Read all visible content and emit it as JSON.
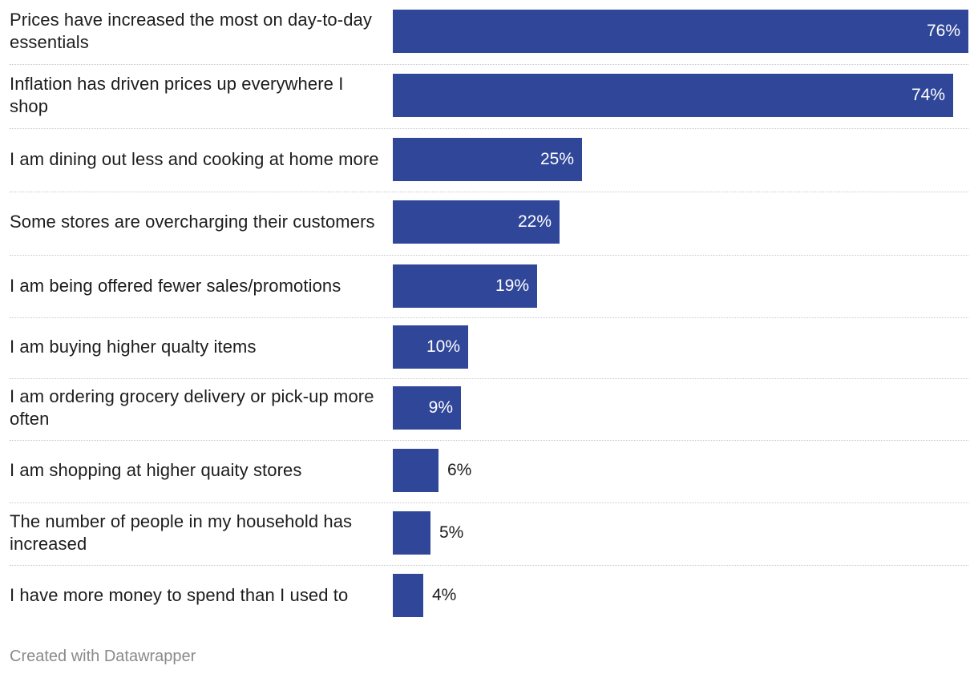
{
  "chart_data": {
    "type": "bar",
    "orientation": "horizontal",
    "categories": [
      "Prices have increased the most on day-to-day essentials",
      "Inflation has driven prices up everywhere I shop",
      "I am dining out less and cooking at home more",
      "Some stores are overcharging their customers",
      "I am being offered fewer sales/promotions",
      "I am buying higher qualty items",
      "I am ordering grocery delivery or pick-up more often",
      "I am shopping at higher quaity stores",
      "The number of people in my household has increased",
      "I have more money to spend than I used to"
    ],
    "values": [
      76,
      74,
      25,
      22,
      19,
      10,
      9,
      6,
      5,
      4
    ],
    "value_labels": [
      "76%",
      "74%",
      "25%",
      "22%",
      "19%",
      "10%",
      "9%",
      "6%",
      "5%",
      "4%"
    ],
    "xlim": [
      0,
      76
    ],
    "bar_color": "#2f4699",
    "grid": false
  },
  "footer": {
    "credit": "Created with Datawrapper"
  }
}
